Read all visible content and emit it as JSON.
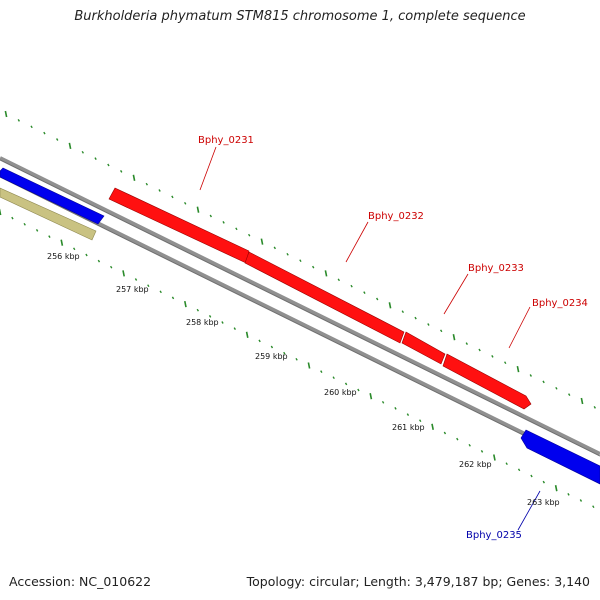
{
  "title": "Burkholderia phymatum STM815 chromosome 1, complete sequence",
  "footer": {
    "accession": "Accession: NC_010622",
    "stats": "Topology: circular; Length: 3,479,187 bp; Genes: 3,140"
  },
  "colors": {
    "forward_gene": "#ff0000",
    "reverse_gene": "#0000ff",
    "other_feature": "#c9c282",
    "backbone": "#909090",
    "ticks": "#2a8a2a",
    "forward_label": "#cc0000",
    "reverse_label": "#0000aa"
  },
  "scale_labels": [
    "256 kbp",
    "257 kbp",
    "258 kbp",
    "259 kbp",
    "260 kbp",
    "261 kbp",
    "262 kbp",
    "263 kbp"
  ],
  "genes": [
    {
      "name": "Bphy_0231",
      "strand": "forward"
    },
    {
      "name": "Bphy_0232",
      "strand": "forward"
    },
    {
      "name": "Bphy_0233",
      "strand": "forward"
    },
    {
      "name": "Bphy_0234",
      "strand": "forward"
    },
    {
      "name": "Bphy_0235",
      "strand": "reverse"
    }
  ]
}
